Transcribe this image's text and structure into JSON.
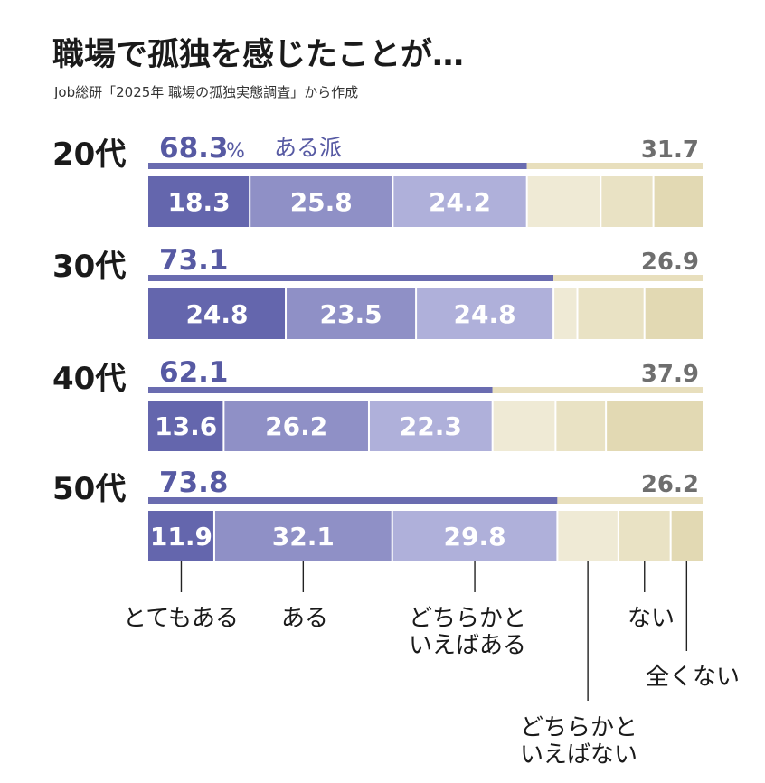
{
  "title": "職場で孤独を感じたことが…",
  "source": "Job総研「2025年 職場の孤独実態調査」から作成",
  "colors": {
    "very": "#6466ad",
    "some": "#8f90c6",
    "somewhat": "#afb0da",
    "lean_no": "#efead5",
    "no": "#e9e2c4",
    "none": "#e2d9b3",
    "bar_yes": "#6a6cb0",
    "bar_no": "#e8dfbd",
    "text_accent": "#575aa3",
    "text_gray": "#6e6e6e"
  },
  "chart_data": {
    "type": "bar",
    "stacked": true,
    "orientation": "horizontal",
    "categories": [
      "20代",
      "30代",
      "40代",
      "50代"
    ],
    "series": [
      {
        "name": "とてもある",
        "values": [
          18.3,
          24.8,
          13.6,
          11.9
        ]
      },
      {
        "name": "ある",
        "values": [
          25.8,
          23.5,
          26.2,
          32.1
        ]
      },
      {
        "name": "どちらかといえばある",
        "values": [
          24.2,
          24.8,
          22.3,
          29.8
        ]
      },
      {
        "name": "どちらかといえばない",
        "values": [
          null,
          null,
          null,
          null
        ]
      },
      {
        "name": "ない",
        "values": [
          null,
          null,
          null,
          null
        ]
      },
      {
        "name": "全くない",
        "values": [
          null,
          null,
          null,
          null
        ]
      }
    ],
    "totals_yes": [
      68.3,
      73.1,
      62.1,
      73.8
    ],
    "totals_no": [
      31.7,
      26.9,
      37.9,
      26.2
    ],
    "unit": "%",
    "yes_label": "ある派"
  }
}
